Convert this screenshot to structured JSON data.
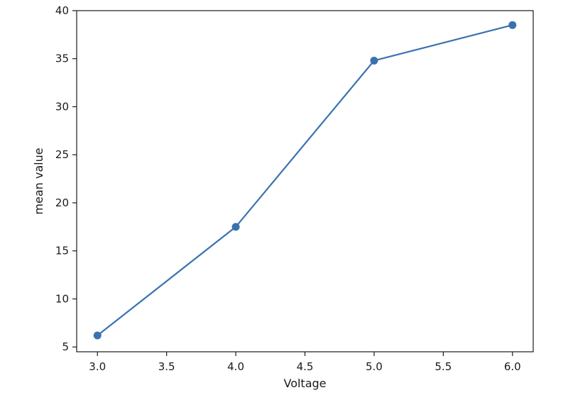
{
  "chart_data": {
    "type": "line",
    "title": "",
    "xlabel": "Voltage",
    "ylabel": "mean value",
    "xlim": [
      2.85,
      6.15
    ],
    "ylim": [
      4.5,
      40
    ],
    "xticks": [
      3.0,
      3.5,
      4.0,
      4.5,
      5.0,
      5.5,
      6.0
    ],
    "xtick_labels": [
      "3.0",
      "3.5",
      "4.0",
      "4.5",
      "5.0",
      "5.5",
      "6.0"
    ],
    "yticks": [
      5,
      10,
      15,
      20,
      25,
      30,
      35,
      40
    ],
    "ytick_labels": [
      "5",
      "10",
      "15",
      "20",
      "25",
      "30",
      "35",
      "40"
    ],
    "grid": false,
    "series": [
      {
        "color": "#3a72b0",
        "marker": "circle",
        "x": [
          3.0,
          4.0,
          5.0,
          6.0
        ],
        "y": [
          6.2,
          17.5,
          34.8,
          38.5
        ]
      }
    ]
  }
}
